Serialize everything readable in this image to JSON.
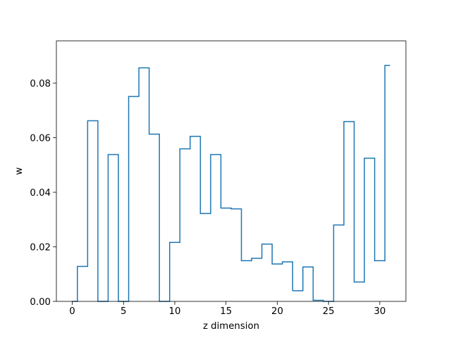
{
  "chart_data": {
    "type": "line",
    "step": "mid",
    "title": "",
    "xlabel": "z dimension",
    "ylabel": "w",
    "xlim": [
      -1.55,
      32.55
    ],
    "ylim": [
      0.0,
      0.0955
    ],
    "grid": false,
    "legend": "none",
    "x_ticks": [
      0,
      5,
      10,
      15,
      20,
      25,
      30
    ],
    "x_tick_labels": [
      "0",
      "5",
      "10",
      "15",
      "20",
      "25",
      "30"
    ],
    "y_ticks": [
      0.0,
      0.02,
      0.04,
      0.06,
      0.08
    ],
    "y_tick_labels": [
      "0.00",
      "0.02",
      "0.04",
      "0.06",
      "0.08"
    ],
    "series": [
      {
        "color": "#1f77b4",
        "x": [
          0,
          1,
          2,
          3,
          4,
          5,
          6,
          7,
          8,
          9,
          10,
          11,
          12,
          13,
          14,
          15,
          16,
          17,
          18,
          19,
          20,
          21,
          22,
          23,
          24,
          25,
          26,
          27,
          28,
          29,
          30,
          31
        ],
        "values": [
          0.0,
          0.0128,
          0.0662,
          0.0,
          0.0538,
          0.0,
          0.0751,
          0.0856,
          0.0613,
          0.0,
          0.0216,
          0.0559,
          0.0605,
          0.0322,
          0.0538,
          0.0342,
          0.0339,
          0.0149,
          0.0158,
          0.021,
          0.0137,
          0.0145,
          0.0039,
          0.0126,
          0.0004,
          0.0,
          0.028,
          0.0659,
          0.0071,
          0.0525,
          0.0149,
          0.0865
        ]
      }
    ]
  }
}
